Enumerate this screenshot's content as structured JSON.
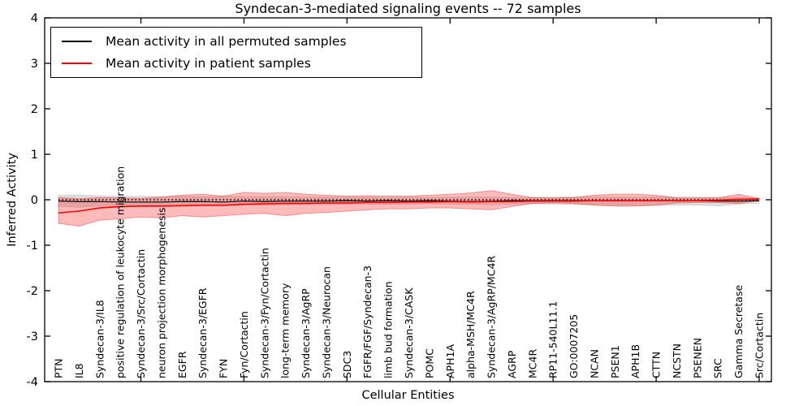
{
  "legend": {
    "items": [
      {
        "label": "Mean activity in all permuted samples",
        "color": "#000000"
      },
      {
        "label": "Mean activity in patient samples",
        "color": "#ff0000"
      }
    ]
  },
  "chart_data": {
    "type": "line",
    "title": "Syndecan-3-mediated signaling events -- 72 samples",
    "xlabel": "Cellular Entities",
    "ylabel": "Inferred Activity",
    "ylim": [
      -4,
      4
    ],
    "yticks": [
      -4,
      -3,
      -2,
      -1,
      0,
      1,
      2,
      3,
      4
    ],
    "grid": false,
    "legend_position": "upper left",
    "x_major_tick_indices": [
      4,
      9,
      14,
      19,
      24,
      29,
      34
    ],
    "reference_line": {
      "y": 0,
      "style": "dotted",
      "color": "#000000"
    },
    "categories": [
      "PTN",
      "IL8",
      "Syndecan-3/IL8",
      "positive regulation of leukocyte migration",
      "Syndecan-3/Src/Cortactin",
      "neuron projection morphogenesis",
      "EGFR",
      "Syndecan-3/EGFR",
      "FYN",
      "Fyn/Cortactin",
      "Syndecan-3/Fyn/Cortactin",
      "long-term memory",
      "Syndecan-3/AgRP",
      "Syndecan-3/Neurocan",
      "SDC3",
      "FGFR/FGF/Syndecan-3",
      "limb bud formation",
      "Syndecan-3/CASK",
      "POMC",
      "APH1A",
      "alpha-MSH/MC4R",
      "Syndecan-3/AgRP/MC4R",
      "AGRP",
      "MC4R",
      "RP11-540L11.1",
      "GO:0007205",
      "NCAN",
      "PSEN1",
      "APH1B",
      "CTTN",
      "NCSTN",
      "PSENEN",
      "SRC",
      "Gamma Secretase",
      "Src/Cortactin"
    ],
    "series": [
      {
        "name": "Mean activity in all permuted samples",
        "color": "#000000",
        "line_width": 1.2,
        "band_fill": "rgba(0,0,0,0.13)",
        "band_edge": "rgba(0,0,0,0.08)",
        "values": [
          -0.03,
          -0.04,
          -0.04,
          -0.05,
          -0.05,
          -0.05,
          -0.04,
          -0.04,
          -0.05,
          -0.03,
          -0.04,
          -0.03,
          -0.03,
          -0.03,
          -0.02,
          -0.03,
          -0.02,
          -0.03,
          -0.02,
          -0.03,
          -0.04,
          -0.03,
          -0.02,
          -0.02,
          -0.02,
          -0.02,
          -0.02,
          -0.02,
          -0.02,
          -0.02,
          -0.02,
          -0.02,
          -0.03,
          -0.03,
          -0.02
        ],
        "band_upper": [
          0.1,
          0.11,
          0.09,
          0.08,
          0.08,
          0.07,
          0.08,
          0.07,
          0.08,
          0.07,
          0.07,
          0.07,
          0.06,
          0.06,
          0.06,
          0.06,
          0.05,
          0.06,
          0.05,
          0.06,
          0.06,
          0.06,
          0.05,
          0.05,
          0.06,
          0.06,
          0.06,
          0.06,
          0.06,
          0.06,
          0.06,
          0.06,
          0.06,
          0.05,
          0.03
        ],
        "band_lower": [
          -0.15,
          -0.17,
          -0.14,
          -0.16,
          -0.14,
          -0.13,
          -0.12,
          -0.12,
          -0.13,
          -0.12,
          -0.12,
          -0.11,
          -0.11,
          -0.1,
          -0.1,
          -0.1,
          -0.1,
          -0.1,
          -0.09,
          -0.1,
          -0.1,
          -0.11,
          -0.1,
          -0.09,
          -0.1,
          -0.11,
          -0.11,
          -0.12,
          -0.12,
          -0.12,
          -0.12,
          -0.12,
          -0.14,
          -0.1,
          -0.08
        ]
      },
      {
        "name": "Mean activity in patient samples",
        "color": "#ff0000",
        "line_width": 1.6,
        "band_fill": "rgba(255,0,0,0.27)",
        "band_edge": "rgba(220,0,0,0.35)",
        "values": [
          -0.29,
          -0.25,
          -0.18,
          -0.15,
          -0.14,
          -0.14,
          -0.13,
          -0.12,
          -0.12,
          -0.1,
          -0.09,
          -0.08,
          -0.08,
          -0.07,
          -0.07,
          -0.06,
          -0.06,
          -0.05,
          -0.05,
          -0.04,
          -0.05,
          -0.04,
          -0.04,
          -0.03,
          -0.03,
          -0.03,
          -0.02,
          -0.02,
          -0.02,
          -0.02,
          -0.02,
          -0.02,
          -0.01,
          0.01,
          0.02
        ],
        "band_upper": [
          0.05,
          0.02,
          0.05,
          0.04,
          0.03,
          0.06,
          0.1,
          0.12,
          0.08,
          0.16,
          0.14,
          0.16,
          0.12,
          0.1,
          0.08,
          0.09,
          0.08,
          0.08,
          0.1,
          0.12,
          0.15,
          0.2,
          0.12,
          0.05,
          0.04,
          0.05,
          0.1,
          0.12,
          0.12,
          0.1,
          0.04,
          0.04,
          0.04,
          0.12,
          0.03
        ],
        "band_lower": [
          -0.52,
          -0.58,
          -0.45,
          -0.42,
          -0.38,
          -0.4,
          -0.35,
          -0.38,
          -0.35,
          -0.32,
          -0.3,
          -0.35,
          -0.3,
          -0.28,
          -0.25,
          -0.22,
          -0.2,
          -0.2,
          -0.18,
          -0.18,
          -0.2,
          -0.22,
          -0.15,
          -0.08,
          -0.07,
          -0.08,
          -0.12,
          -0.14,
          -0.14,
          -0.12,
          -0.07,
          -0.06,
          -0.06,
          -0.08,
          -0.02
        ]
      }
    ]
  }
}
